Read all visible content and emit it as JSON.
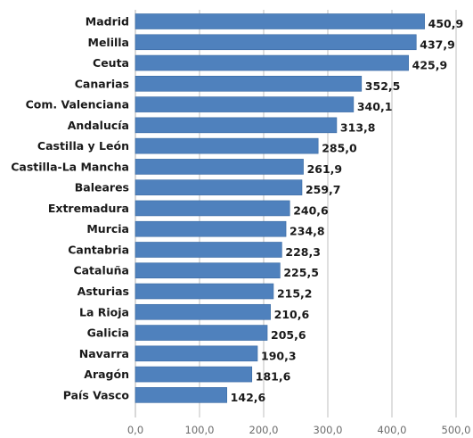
{
  "chart_data": {
    "type": "bar",
    "orientation": "horizontal",
    "categories": [
      "Madrid",
      "Melilla",
      "Ceuta",
      "Canarias",
      "Com. Valenciana",
      "Andalucía",
      "Castilla y León",
      "Castilla-La Mancha",
      "Baleares",
      "Extremadura",
      "Murcia",
      "Cantabria",
      "Cataluña",
      "Asturias",
      "La Rioja",
      "Galicia",
      "Navarra",
      "Aragón",
      "País Vasco"
    ],
    "values": [
      450.9,
      437.9,
      425.9,
      352.5,
      340.1,
      313.8,
      285.0,
      261.9,
      259.7,
      240.6,
      234.8,
      228.3,
      225.5,
      215.2,
      210.6,
      205.6,
      190.3,
      181.6,
      142.6
    ],
    "value_labels": [
      "450,9",
      "437,9",
      "425,9",
      "352,5",
      "340,1",
      "313,8",
      "285,0",
      "261,9",
      "259,7",
      "240,6",
      "234,8",
      "228,3",
      "225,5",
      "215,2",
      "210,6",
      "205,6",
      "190,3",
      "181,6",
      "142,6"
    ],
    "x_ticks": [
      0,
      100,
      200,
      300,
      400,
      500
    ],
    "x_tick_labels": [
      "0,0",
      "100,0",
      "200,0",
      "300,0",
      "400,0",
      "500,0"
    ],
    "xlim": [
      0,
      500
    ],
    "title": "",
    "xlabel": "",
    "ylabel": "",
    "grid": "vertical",
    "legend": "none",
    "bar_color": "#4f81bd",
    "bar_edge_color": "#3a6aa3",
    "grid_color": "#bfbfbf"
  }
}
